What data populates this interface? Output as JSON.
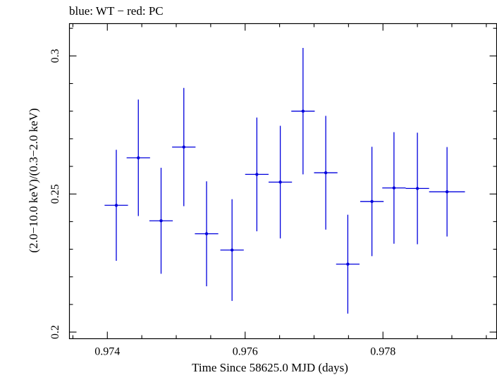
{
  "chart_data": {
    "type": "scatter",
    "title": "blue: WT − red: PC",
    "xlabel": "Time Since 58625.0 MJD (days)",
    "ylabel": "(2.0−10.0 keV)/(0.3−2.0 keV)",
    "xlim": [
      0.97345,
      0.97965
    ],
    "ylim": [
      0.1976,
      0.3117
    ],
    "x_ticks": [
      {
        "value": 0.974,
        "label": "0.974"
      },
      {
        "value": 0.976,
        "label": "0.976"
      },
      {
        "value": 0.978,
        "label": "0.978"
      }
    ],
    "y_ticks": [
      {
        "value": 0.2,
        "label": "0.2"
      },
      {
        "value": 0.25,
        "label": "0.25"
      },
      {
        "value": 0.3,
        "label": "0.3"
      }
    ],
    "series": [
      {
        "name": "WT",
        "color": "#0000dd",
        "points": [
          {
            "x": 0.97413,
            "xerr": 0.00017,
            "y": 0.2459,
            "yerr": 0.0201
          },
          {
            "x": 0.97445,
            "xerr": 0.00017,
            "y": 0.2631,
            "yerr": 0.0211
          },
          {
            "x": 0.97478,
            "xerr": 0.00017,
            "y": 0.2403,
            "yerr": 0.0192
          },
          {
            "x": 0.97511,
            "xerr": 0.00017,
            "y": 0.267,
            "yerr": 0.0214
          },
          {
            "x": 0.97544,
            "xerr": 0.00017,
            "y": 0.2356,
            "yerr": 0.019
          },
          {
            "x": 0.97581,
            "xerr": 0.00017,
            "y": 0.2297,
            "yerr": 0.0184
          },
          {
            "x": 0.97617,
            "xerr": 0.00017,
            "y": 0.2571,
            "yerr": 0.0206
          },
          {
            "x": 0.97651,
            "xerr": 0.00017,
            "y": 0.2543,
            "yerr": 0.0204
          },
          {
            "x": 0.97684,
            "xerr": 0.00017,
            "y": 0.28,
            "yerr": 0.0229
          },
          {
            "x": 0.97717,
            "xerr": 0.00017,
            "y": 0.2577,
            "yerr": 0.0206
          },
          {
            "x": 0.97749,
            "xerr": 0.00017,
            "y": 0.2246,
            "yerr": 0.0179
          },
          {
            "x": 0.97784,
            "xerr": 0.00017,
            "y": 0.2473,
            "yerr": 0.0198
          },
          {
            "x": 0.97816,
            "xerr": 0.00017,
            "y": 0.2522,
            "yerr": 0.0202
          },
          {
            "x": 0.9785,
            "xerr": 0.00017,
            "y": 0.252,
            "yerr": 0.0202
          },
          {
            "x": 0.97893,
            "xerr": 0.00026,
            "y": 0.2508,
            "yerr": 0.0162
          }
        ]
      }
    ],
    "grid": false
  }
}
